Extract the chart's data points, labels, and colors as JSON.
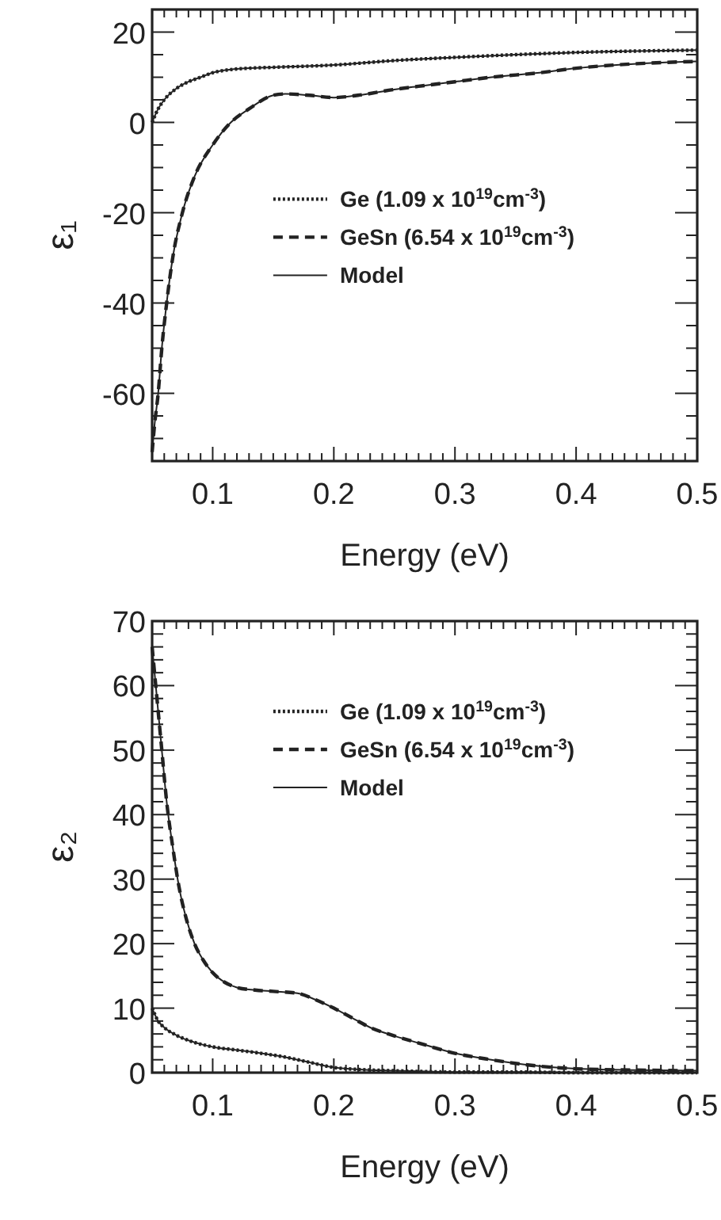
{
  "chart_data": [
    {
      "type": "line",
      "ylabel": "ε₁",
      "xlabel": "Energy (eV)",
      "xlim": [
        0.05,
        0.5
      ],
      "ylim": [
        -75,
        25
      ],
      "xticks": [
        {
          "value": 0.05,
          "label": null
        },
        {
          "value": 0.06,
          "label": null
        },
        {
          "value": 0.07,
          "label": null
        },
        {
          "value": 0.08,
          "label": null
        },
        {
          "value": 0.09,
          "label": null
        },
        0.1,
        {
          "value": 0.11,
          "label": null
        },
        {
          "value": 0.12,
          "label": null
        },
        {
          "value": 0.13,
          "label": null
        },
        {
          "value": 0.14,
          "label": null
        },
        {
          "value": 0.15,
          "label": null
        },
        {
          "value": 0.16,
          "label": null
        },
        {
          "value": 0.17,
          "label": null
        },
        {
          "value": 0.18,
          "label": null
        },
        {
          "value": 0.19,
          "label": null
        },
        0.2,
        {
          "value": 0.21,
          "label": null
        },
        {
          "value": 0.22,
          "label": null
        },
        {
          "value": 0.23,
          "label": null
        },
        {
          "value": 0.24,
          "label": null
        },
        {
          "value": 0.25,
          "label": null
        },
        {
          "value": 0.26,
          "label": null
        },
        {
          "value": 0.27,
          "label": null
        },
        {
          "value": 0.28,
          "label": null
        },
        {
          "value": 0.29,
          "label": null
        },
        0.3,
        {
          "value": 0.31,
          "label": null
        },
        {
          "value": 0.32,
          "label": null
        },
        {
          "value": 0.33,
          "label": null
        },
        {
          "value": 0.34,
          "label": null
        },
        {
          "value": 0.35,
          "label": null
        },
        {
          "value": 0.36,
          "label": null
        },
        {
          "value": 0.37,
          "label": null
        },
        {
          "value": 0.38,
          "label": null
        },
        {
          "value": 0.39,
          "label": null
        },
        0.4,
        {
          "value": 0.41,
          "label": null
        },
        {
          "value": 0.42,
          "label": null
        },
        {
          "value": 0.43,
          "label": null
        },
        {
          "value": 0.44,
          "label": null
        },
        {
          "value": 0.45,
          "label": null
        },
        {
          "value": 0.46,
          "label": null
        },
        {
          "value": 0.47,
          "label": null
        },
        {
          "value": 0.48,
          "label": null
        },
        {
          "value": 0.49,
          "label": null
        },
        0.5
      ],
      "yticks": [
        {
          "value": -70,
          "label": null
        },
        {
          "value": -65,
          "label": null
        },
        -60,
        {
          "value": -55,
          "label": null
        },
        {
          "value": -50,
          "label": null
        },
        {
          "value": -45,
          "label": null
        },
        -40,
        {
          "value": -35,
          "label": null
        },
        {
          "value": -30,
          "label": null
        },
        {
          "value": -25,
          "label": null
        },
        -20,
        {
          "value": -15,
          "label": null
        },
        {
          "value": -10,
          "label": null
        },
        {
          "value": -5,
          "label": null
        },
        0,
        {
          "value": 5,
          "label": null
        },
        {
          "value": 10,
          "label": null
        },
        {
          "value": 15,
          "label": null
        },
        20
      ],
      "legend": "center",
      "series": [
        {
          "name": "Ge (1.09 x 10$^{19}$cm$^{-3}$)",
          "color": "#222222",
          "line_style": "dotted",
          "x": [
            0.05,
            0.055,
            0.06,
            0.07,
            0.08,
            0.09,
            0.1,
            0.115,
            0.13,
            0.15,
            0.2,
            0.25,
            0.3,
            0.35,
            0.4,
            0.45,
            0.5
          ],
          "values": [
            0,
            3,
            5,
            7.5,
            9,
            10,
            11,
            11.7,
            12,
            12.2,
            12.7,
            13.7,
            14.4,
            15,
            15.5,
            15.8,
            16
          ]
        },
        {
          "name": "GeSn (6.54 x 10$^{19}$cm$^{-3}$)",
          "color": "#222222",
          "line_style": "dashed",
          "x": [
            0.05,
            0.052,
            0.055,
            0.058,
            0.062,
            0.067,
            0.075,
            0.085,
            0.1,
            0.115,
            0.13,
            0.15,
            0.16,
            0.18,
            0.2,
            0.22,
            0.25,
            0.27,
            0.3,
            0.33,
            0.37,
            0.4,
            0.45,
            0.5
          ],
          "values": [
            -73,
            -67,
            -60,
            -50,
            -40,
            -30,
            -20,
            -12,
            -5,
            0,
            3,
            6,
            6.3,
            6,
            5.5,
            6,
            7.3,
            8,
            9,
            10,
            11,
            12,
            13,
            13.5
          ]
        },
        {
          "name": "Model",
          "color": "#222222",
          "line_style": "solid",
          "x": [
            0.05,
            0.052,
            0.055,
            0.058,
            0.062,
            0.067,
            0.075,
            0.085,
            0.1,
            0.115,
            0.13,
            0.15,
            0.16,
            0.18,
            0.2,
            0.22,
            0.25,
            0.27,
            0.3,
            0.33,
            0.37,
            0.4,
            0.45,
            0.5
          ],
          "values": [
            -73,
            -67,
            -60,
            -50,
            -40,
            -30,
            -20,
            -12,
            -5,
            0,
            3,
            6,
            6.3,
            6,
            5.5,
            6,
            7.3,
            8,
            9,
            10,
            11,
            12,
            13,
            13.5
          ]
        },
        {
          "color": "#222222",
          "line_style": "solid",
          "x": [
            0.05,
            0.055,
            0.06,
            0.07,
            0.08,
            0.09,
            0.1,
            0.115,
            0.13,
            0.15,
            0.2,
            0.25,
            0.3,
            0.35,
            0.4,
            0.45,
            0.5
          ],
          "values": [
            0,
            3,
            5,
            7.5,
            9,
            10,
            11,
            11.7,
            12,
            12.2,
            12.7,
            13.7,
            14.4,
            15,
            15.5,
            15.8,
            16
          ]
        }
      ]
    },
    {
      "type": "line",
      "ylabel": "ε₂",
      "xlabel": "Energy (eV)",
      "xlim": [
        0.05,
        0.5
      ],
      "ylim": [
        0,
        70
      ],
      "xticks": [
        {
          "value": 0.05,
          "label": null
        },
        {
          "value": 0.06,
          "label": null
        },
        {
          "value": 0.07,
          "label": null
        },
        {
          "value": 0.08,
          "label": null
        },
        {
          "value": 0.09,
          "label": null
        },
        0.1,
        {
          "value": 0.11,
          "label": null
        },
        {
          "value": 0.12,
          "label": null
        },
        {
          "value": 0.13,
          "label": null
        },
        {
          "value": 0.14,
          "label": null
        },
        {
          "value": 0.15,
          "label": null
        },
        {
          "value": 0.16,
          "label": null
        },
        {
          "value": 0.17,
          "label": null
        },
        {
          "value": 0.18,
          "label": null
        },
        {
          "value": 0.19,
          "label": null
        },
        0.2,
        {
          "value": 0.21,
          "label": null
        },
        {
          "value": 0.22,
          "label": null
        },
        {
          "value": 0.23,
          "label": null
        },
        {
          "value": 0.24,
          "label": null
        },
        {
          "value": 0.25,
          "label": null
        },
        {
          "value": 0.26,
          "label": null
        },
        {
          "value": 0.27,
          "label": null
        },
        {
          "value": 0.28,
          "label": null
        },
        {
          "value": 0.29,
          "label": null
        },
        0.3,
        {
          "value": 0.31,
          "label": null
        },
        {
          "value": 0.32,
          "label": null
        },
        {
          "value": 0.33,
          "label": null
        },
        {
          "value": 0.34,
          "label": null
        },
        {
          "value": 0.35,
          "label": null
        },
        {
          "value": 0.36,
          "label": null
        },
        {
          "value": 0.37,
          "label": null
        },
        {
          "value": 0.38,
          "label": null
        },
        {
          "value": 0.39,
          "label": null
        },
        0.4,
        {
          "value": 0.41,
          "label": null
        },
        {
          "value": 0.42,
          "label": null
        },
        {
          "value": 0.43,
          "label": null
        },
        {
          "value": 0.44,
          "label": null
        },
        {
          "value": 0.45,
          "label": null
        },
        {
          "value": 0.46,
          "label": null
        },
        {
          "value": 0.47,
          "label": null
        },
        {
          "value": 0.48,
          "label": null
        },
        {
          "value": 0.49,
          "label": null
        },
        0.5
      ],
      "yticks": [
        0,
        {
          "value": 2,
          "label": null
        },
        {
          "value": 4,
          "label": null
        },
        {
          "value": 6,
          "label": null
        },
        {
          "value": 8,
          "label": null
        },
        10,
        {
          "value": 12,
          "label": null
        },
        {
          "value": 14,
          "label": null
        },
        {
          "value": 16,
          "label": null
        },
        {
          "value": 18,
          "label": null
        },
        20,
        {
          "value": 22,
          "label": null
        },
        {
          "value": 24,
          "label": null
        },
        {
          "value": 26,
          "label": null
        },
        {
          "value": 28,
          "label": null
        },
        30,
        {
          "value": 32,
          "label": null
        },
        {
          "value": 34,
          "label": null
        },
        {
          "value": 36,
          "label": null
        },
        {
          "value": 38,
          "label": null
        },
        40,
        {
          "value": 42,
          "label": null
        },
        {
          "value": 44,
          "label": null
        },
        {
          "value": 46,
          "label": null
        },
        {
          "value": 48,
          "label": null
        },
        50,
        {
          "value": 52,
          "label": null
        },
        {
          "value": 54,
          "label": null
        },
        {
          "value": 56,
          "label": null
        },
        {
          "value": 58,
          "label": null
        },
        60,
        {
          "value": 62,
          "label": null
        },
        {
          "value": 64,
          "label": null
        },
        {
          "value": 66,
          "label": null
        },
        {
          "value": 68,
          "label": null
        },
        70
      ],
      "legend": "top",
      "series": [
        {
          "name": "Ge (1.09 x 10$^{19}$cm$^{-3}$)",
          "color": "#222222",
          "line_style": "dotted",
          "x": [
            0.05,
            0.055,
            0.06,
            0.07,
            0.08,
            0.1,
            0.12,
            0.14,
            0.16,
            0.18,
            0.2,
            0.22,
            0.25,
            0.3,
            0.35,
            0.4,
            0.5
          ],
          "values": [
            10,
            8,
            7,
            5.8,
            5,
            4,
            3.5,
            3,
            2.4,
            1.6,
            0.8,
            0.5,
            0.3,
            0.1,
            0.1,
            0,
            0
          ]
        },
        {
          "name": "GeSn (6.54 x 10$^{19}$cm$^{-3}$)",
          "color": "#222222",
          "line_style": "dashed",
          "x": [
            0.05,
            0.052,
            0.055,
            0.058,
            0.062,
            0.067,
            0.072,
            0.078,
            0.085,
            0.092,
            0.1,
            0.11,
            0.12,
            0.135,
            0.15,
            0.17,
            0.185,
            0.2,
            0.215,
            0.23,
            0.25,
            0.27,
            0.3,
            0.33,
            0.36,
            0.4,
            0.45,
            0.5
          ],
          "values": [
            66,
            62,
            56,
            50,
            42,
            35,
            29,
            24,
            20,
            17.5,
            15.5,
            14,
            13.2,
            12.8,
            12.6,
            12.3,
            11.3,
            10,
            8.5,
            7,
            5.7,
            4.6,
            3,
            2,
            1.2,
            0.6,
            0.4,
            0.3
          ]
        },
        {
          "name": "Model",
          "color": "#222222",
          "line_style": "solid",
          "x": [
            0.05,
            0.052,
            0.055,
            0.058,
            0.062,
            0.067,
            0.072,
            0.078,
            0.085,
            0.092,
            0.1,
            0.11,
            0.12,
            0.135,
            0.15,
            0.17,
            0.185,
            0.2,
            0.215,
            0.23,
            0.25,
            0.27,
            0.3,
            0.33,
            0.36,
            0.4,
            0.45,
            0.5
          ],
          "values": [
            66,
            62,
            56,
            50,
            42,
            35,
            29,
            24,
            20,
            17.5,
            15.5,
            14,
            13.2,
            12.8,
            12.6,
            12.3,
            11.3,
            10,
            8.5,
            7,
            5.7,
            4.6,
            3,
            2,
            1.2,
            0.6,
            0.4,
            0.3
          ]
        },
        {
          "color": "#222222",
          "line_style": "solid",
          "x": [
            0.05,
            0.055,
            0.06,
            0.07,
            0.08,
            0.1,
            0.12,
            0.14,
            0.16,
            0.18,
            0.2,
            0.22,
            0.25,
            0.3,
            0.35,
            0.4,
            0.5
          ],
          "values": [
            10,
            8,
            7,
            5.8,
            5,
            4,
            3.5,
            3,
            2.4,
            1.6,
            0.8,
            0.5,
            0.3,
            0.1,
            0.1,
            0,
            0
          ]
        }
      ]
    }
  ]
}
